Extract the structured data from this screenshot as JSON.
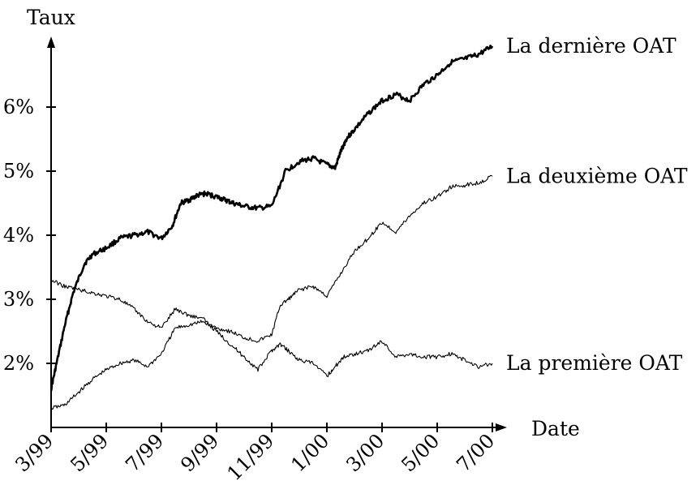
{
  "chart_data": {
    "type": "line",
    "title": "",
    "xlabel": "Date",
    "ylabel": "Taux",
    "x_ticks": [
      "3/99",
      "5/99",
      "7/99",
      "9/99",
      "11/99",
      "1/00",
      "3/00",
      "5/00",
      "7/00"
    ],
    "y_ticks": [
      "2%",
      "3%",
      "4%",
      "5%",
      "6%"
    ],
    "xlim": [
      0,
      16
    ],
    "ylim": [
      1.0,
      7.0
    ],
    "grid": false,
    "legend": "inline-right",
    "series": [
      {
        "name": "La dernière OAT",
        "stroke": "#000000",
        "width": "heavy",
        "x": [
          0,
          0.2,
          0.5,
          0.8,
          1.2,
          1.5,
          2,
          2.5,
          3,
          3.5,
          4,
          4.4,
          4.7,
          5,
          5.3,
          5.6,
          6,
          6.3,
          6.6,
          7,
          7.5,
          8,
          8.5,
          9,
          9.5,
          10,
          10.3,
          10.5,
          10.7,
          11,
          11.5,
          12,
          12.5,
          13,
          13.5,
          14,
          14.5,
          15,
          15.5,
          16
        ],
        "y": [
          1.6,
          2.0,
          2.6,
          3.1,
          3.55,
          3.7,
          3.8,
          3.95,
          4.0,
          4.05,
          3.95,
          4.15,
          4.5,
          4.55,
          4.62,
          4.65,
          4.6,
          4.55,
          4.5,
          4.45,
          4.42,
          4.45,
          5.0,
          5.15,
          5.2,
          5.1,
          5.05,
          5.3,
          5.5,
          5.65,
          5.9,
          6.1,
          6.2,
          6.1,
          6.35,
          6.5,
          6.7,
          6.75,
          6.82,
          6.95
        ]
      },
      {
        "name": "La deuxième OAT",
        "stroke": "#000000",
        "width": "thin",
        "x": [
          0,
          0.5,
          1,
          1.5,
          2,
          2.5,
          3,
          3.5,
          4,
          4.5,
          5,
          5.5,
          6,
          6.5,
          7,
          7.5,
          8,
          8.3,
          8.6,
          9,
          9.5,
          10,
          10.5,
          11,
          11.5,
          12,
          12.5,
          13,
          13.5,
          14,
          14.5,
          15,
          15.5,
          16
        ],
        "y": [
          1.3,
          1.35,
          1.55,
          1.75,
          1.9,
          2.0,
          2.05,
          1.95,
          2.15,
          2.55,
          2.6,
          2.65,
          2.55,
          2.5,
          2.4,
          2.35,
          2.45,
          2.9,
          3.0,
          3.15,
          3.2,
          3.05,
          3.4,
          3.75,
          3.95,
          4.2,
          4.05,
          4.3,
          4.5,
          4.6,
          4.75,
          4.78,
          4.82,
          4.92
        ]
      },
      {
        "name": "La première OAT",
        "stroke": "#000000",
        "width": "thin",
        "x": [
          0,
          0.5,
          1,
          1.5,
          2,
          2.5,
          3,
          3.5,
          4,
          4.5,
          5,
          5.5,
          6,
          6.5,
          7,
          7.5,
          8,
          8.3,
          8.6,
          9,
          9.5,
          10,
          10.3,
          10.6,
          11,
          11.5,
          12,
          12.5,
          13,
          13.5,
          14,
          14.5,
          15,
          15.5,
          16
        ],
        "y": [
          3.3,
          3.2,
          3.15,
          3.1,
          3.05,
          3.0,
          2.85,
          2.65,
          2.55,
          2.85,
          2.75,
          2.7,
          2.5,
          2.3,
          2.1,
          1.9,
          2.2,
          2.3,
          2.2,
          2.05,
          2.0,
          1.8,
          1.95,
          2.1,
          2.15,
          2.2,
          2.35,
          2.1,
          2.15,
          2.1,
          2.1,
          2.15,
          2.05,
          1.95,
          2.0
        ]
      }
    ]
  }
}
